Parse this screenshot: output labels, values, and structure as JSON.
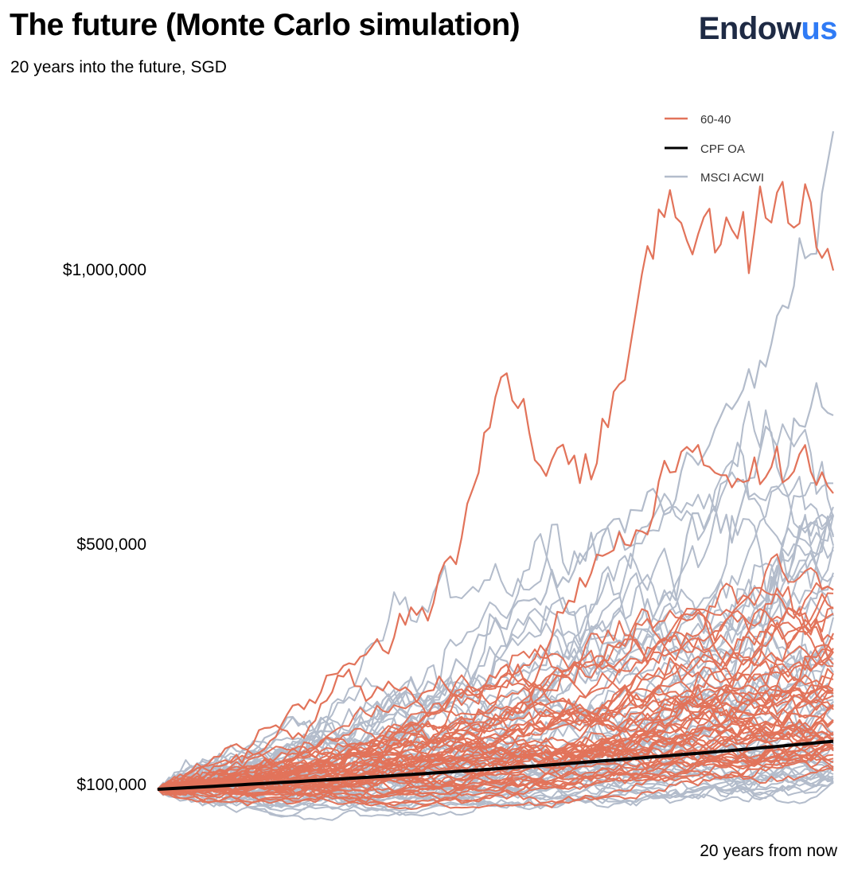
{
  "header": {
    "title": "The future (Monte Carlo simulation)",
    "subtitle": "20 years into the future, SGD",
    "brand_part1": "Endow",
    "brand_part2": "us"
  },
  "colors": {
    "sixty_forty": "#e2735a",
    "cpf_oa": "#000000",
    "msci_acwi": "#b3bccb",
    "brand_dark": "#1e2a44",
    "brand_blue": "#2f7bf5"
  },
  "chart_data": {
    "type": "line",
    "title": "The future (Monte Carlo simulation)",
    "subtitle": "20 years into the future, SGD",
    "xlabel": "20 years from now",
    "ylabel": "",
    "x_range_years": [
      0,
      20
    ],
    "ylim": [
      40000,
      1300000
    ],
    "y_ticks": [
      {
        "value": 100000,
        "label": "$100,000"
      },
      {
        "value": 500000,
        "label": "$500,000"
      },
      {
        "value": 1000000,
        "label": "$1,000,000"
      }
    ],
    "legend": [
      {
        "name": "60-40",
        "color": "#e2735a"
      },
      {
        "name": "CPF OA",
        "color": "#000000"
      },
      {
        "name": "MSCI ACWI",
        "color": "#b3bccb"
      }
    ],
    "legend_position": "top-right",
    "grid": false,
    "series": [
      {
        "name": "CPF OA",
        "start": 100000,
        "end": 180000,
        "paths": 1
      },
      {
        "name": "60-40",
        "start": 100000,
        "end_min": 130000,
        "end_max": 1000000,
        "paths": 50
      },
      {
        "name": "MSCI ACWI",
        "start": 100000,
        "end_min": 110000,
        "end_max": 1250000,
        "paths": 50
      }
    ],
    "highlighted_paths": [
      {
        "series": "MSCI ACWI",
        "end": 1250000
      },
      {
        "series": "60-40",
        "end": 1000000
      },
      {
        "series": "MSCI ACWI",
        "end": 740000
      },
      {
        "series": "60-40",
        "end": 600000
      }
    ]
  }
}
